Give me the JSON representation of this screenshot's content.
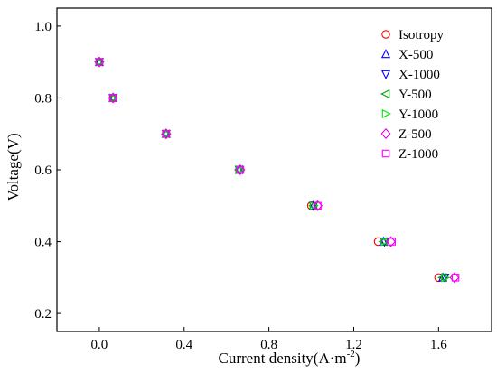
{
  "chart_data": {
    "type": "scatter",
    "title": "",
    "xlabel": "Current density(A·m",
    "xlabel_sup": "-2",
    "xlabel_close": ")",
    "ylabel": "Voltage(V)",
    "xlim": [
      -0.2,
      1.85
    ],
    "ylim": [
      0.15,
      1.05
    ],
    "xticks": [
      0.0,
      0.4,
      0.8,
      1.2,
      1.6
    ],
    "xtick_labels": [
      "0.0",
      "0.4",
      "0.8",
      "1.2",
      "1.6"
    ],
    "yticks": [
      0.2,
      0.4,
      0.6,
      0.8,
      1.0
    ],
    "ytick_labels": [
      "0.2",
      "0.4",
      "0.6",
      "0.8",
      "1.0"
    ],
    "grid": false,
    "legend_position": "top-right",
    "series": [
      {
        "name": "Isotropy",
        "marker": "circle",
        "color": "#ff0000",
        "x": [
          0.0,
          0.065,
          0.315,
          0.66,
          1.0,
          1.315,
          1.6
        ],
        "y": [
          0.9,
          0.8,
          0.7,
          0.6,
          0.5,
          0.4,
          0.3
        ]
      },
      {
        "name": "X-500",
        "marker": "triangle-up",
        "color": "#0000ff",
        "x": [
          0.0,
          0.065,
          0.315,
          0.66,
          1.01,
          1.34,
          1.62
        ],
        "y": [
          0.9,
          0.8,
          0.7,
          0.6,
          0.5,
          0.4,
          0.3
        ]
      },
      {
        "name": "X-1000",
        "marker": "triangle-down",
        "color": "#0000ff",
        "x": [
          0.0,
          0.065,
          0.315,
          0.66,
          1.01,
          1.345,
          1.63
        ],
        "y": [
          0.9,
          0.8,
          0.7,
          0.6,
          0.5,
          0.4,
          0.3
        ]
      },
      {
        "name": "Y-500",
        "marker": "triangle-left",
        "color": "#00a000",
        "x": [
          0.0,
          0.065,
          0.315,
          0.66,
          1.01,
          1.34,
          1.62
        ],
        "y": [
          0.9,
          0.8,
          0.7,
          0.6,
          0.5,
          0.4,
          0.3
        ]
      },
      {
        "name": "Y-1000",
        "marker": "triangle-right",
        "color": "#00e000",
        "x": [
          0.0,
          0.065,
          0.315,
          0.66,
          1.01,
          1.345,
          1.63
        ],
        "y": [
          0.9,
          0.8,
          0.7,
          0.6,
          0.5,
          0.4,
          0.3
        ]
      },
      {
        "name": "Z-500",
        "marker": "diamond",
        "color": "#e000e0",
        "x": [
          0.0,
          0.065,
          0.315,
          0.665,
          1.03,
          1.375,
          1.675
        ],
        "y": [
          0.9,
          0.8,
          0.7,
          0.6,
          0.5,
          0.4,
          0.3
        ]
      },
      {
        "name": "Z-1000",
        "marker": "square",
        "color": "#ff00ff",
        "x": [
          0.0,
          0.065,
          0.315,
          0.665,
          1.03,
          1.38,
          1.68
        ],
        "y": [
          0.9,
          0.8,
          0.7,
          0.6,
          0.5,
          0.4,
          0.3
        ]
      }
    ]
  }
}
